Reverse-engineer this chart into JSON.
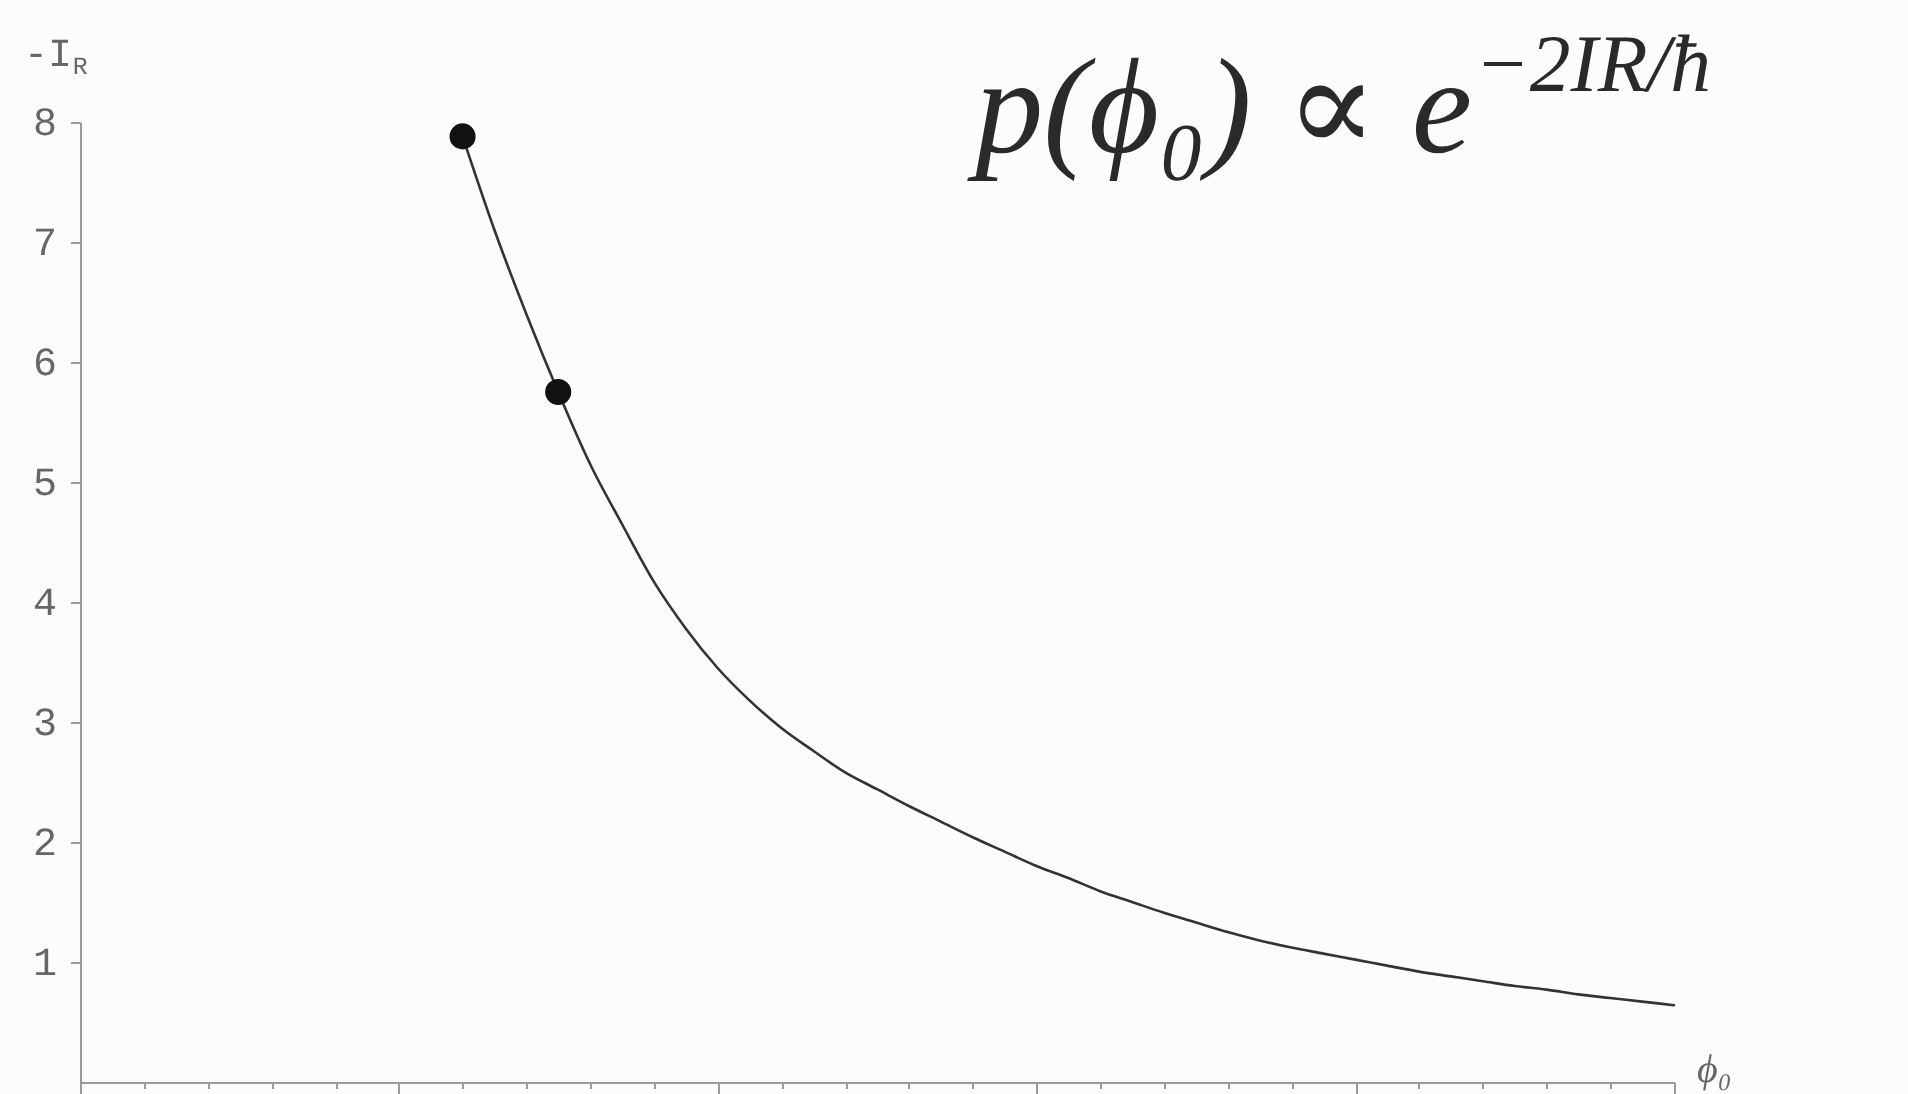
{
  "chart_data": {
    "type": "line",
    "annotations": [
      "p(ϕ₀) ∝ e$^{−2IR/ħ}$"
    ],
    "xlabel": "ϕ₀",
    "ylabel": "-I$_{R}$",
    "tick_labels": "y",
    "categories": [
      null,
      null,
      null,
      null,
      null,
      null,
      null,
      null,
      null,
      null,
      null,
      null,
      null,
      null,
      null,
      null,
      null,
      null,
      null,
      null,
      null,
      null,
      null,
      null,
      null,
      null,
      null,
      null,
      null,
      null,
      null,
      null,
      null,
      null,
      null,
      null,
      null,
      null,
      null,
      null,
      null,
      null,
      null,
      null,
      null,
      null,
      null,
      null,
      null,
      null,
      null
    ],
    "ylim": [
      0,
      8
    ],
    "yticks": [
      1,
      2,
      3,
      4,
      5,
      6,
      7,
      8
    ],
    "series": [
      {
        "type": "line",
        "color": "#333333",
        "values": [
          null,
          null,
          null,
          null,
          null,
          null,
          null,
          null,
          null,
          null,
          null,
          null,
          7.88,
          7.1,
          6.4,
          5.75,
          5.15,
          4.65,
          4.17,
          3.78,
          3.45,
          3.18,
          2.95,
          2.76,
          2.58,
          2.44,
          2.3,
          2.17,
          2.04,
          1.92,
          1.8,
          1.7,
          1.59,
          1.5,
          1.41,
          1.33,
          1.25,
          1.18,
          1.12,
          1.07,
          1.02,
          0.97,
          0.92,
          0.88,
          0.84,
          0.8,
          0.77,
          0.73,
          0.7,
          0.67,
          0.64
        ]
      },
      {
        "type": "scatter",
        "color": "#111111",
        "marker": "circle",
        "values": [
          null,
          null,
          null,
          null,
          null,
          null,
          null,
          null,
          null,
          null,
          null,
          null,
          7.88,
          null,
          null,
          5.75,
          null,
          null,
          null,
          null,
          null,
          null,
          null,
          null,
          null,
          null,
          null,
          null,
          null,
          null,
          null,
          null,
          null,
          null,
          null,
          null,
          null,
          null,
          null,
          null,
          null,
          null,
          null,
          null,
          null,
          null,
          null,
          null,
          null,
          null,
          null
        ]
      }
    ]
  }
}
